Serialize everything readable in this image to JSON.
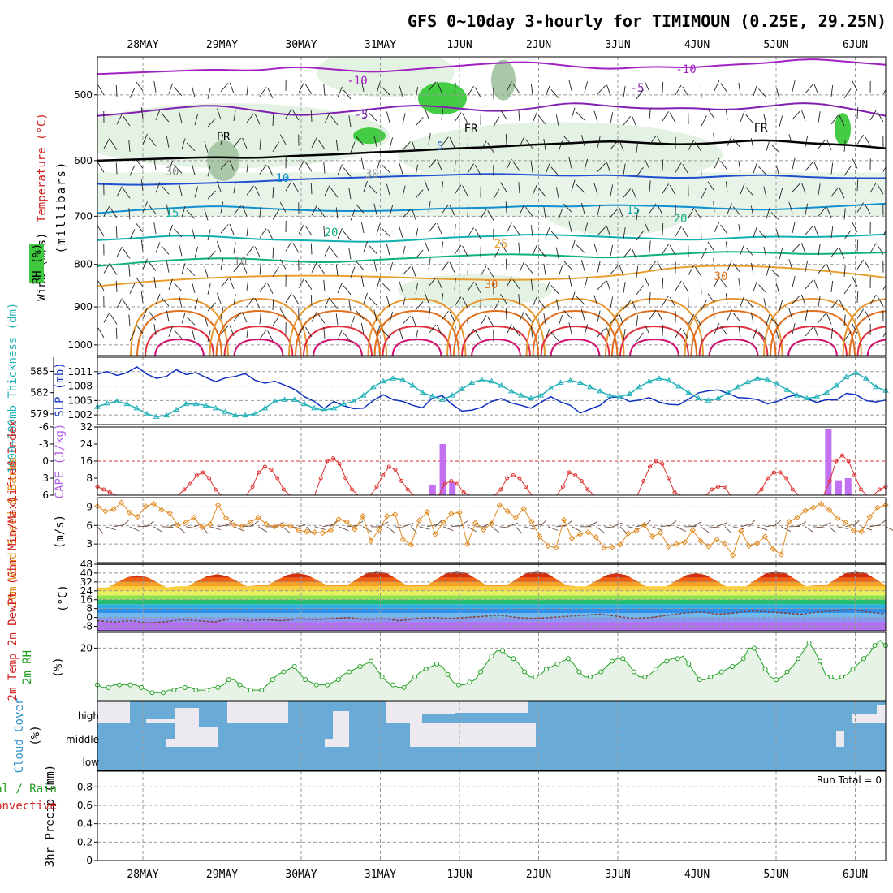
{
  "title": "GFS 0~10day 3-hourly for TIMIMOUN (0.25E, 29.25N)",
  "dates": [
    "28MAY",
    "29MAY",
    "30MAY",
    "31MAY",
    "1JUN",
    "2JUN",
    "3JUN",
    "4JUN",
    "5JUN",
    "6JUN"
  ],
  "chart_data": [
    {
      "type": "heatmap",
      "panel": "upper-air",
      "ylabel_parts": [
        "Wind (m/s)",
        "Temperature (°C)",
        "RH (%)"
      ],
      "ylabel_units": "(millibars)",
      "yticks": [
        500,
        600,
        700,
        800,
        900,
        1000
      ],
      "ylim": [
        1000,
        450
      ],
      "scale": "log-pressure",
      "contour_labels": [
        "-10",
        "-10",
        "-5",
        "-5",
        "FR",
        "FR",
        "FR",
        "5",
        "10",
        "15",
        "15",
        "20",
        "20",
        "25",
        "30",
        "30",
        "30",
        "30",
        "10"
      ],
      "isotherms": [
        {
          "label": "-10",
          "p": [
            472,
            470,
            468,
            466,
            468,
            462,
            466,
            470,
            466,
            462,
            458,
            456,
            462,
            466,
            462,
            464,
            460,
            458,
            452,
            456,
            460
          ],
          "color": "#a020c0"
        },
        {
          "label": "-5",
          "p": [
            530,
            525,
            518,
            514,
            522,
            530,
            526,
            520,
            514,
            518,
            524,
            520,
            510,
            516,
            520,
            518,
            522,
            516,
            510,
            518,
            530
          ],
          "color": "#8020b0"
        },
        {
          "label": "FR",
          "p": [
            600,
            598,
            596,
            594,
            596,
            592,
            590,
            586,
            584,
            580,
            578,
            574,
            572,
            568,
            572,
            574,
            570,
            566,
            572,
            574,
            580
          ],
          "color": "#000000"
        },
        {
          "label": "5",
          "p": [
            640,
            642,
            640,
            638,
            636,
            632,
            630,
            628,
            626,
            624,
            622,
            624,
            626,
            624,
            628,
            630,
            626,
            624,
            628,
            630,
            630
          ],
          "color": "#2050d0"
        },
        {
          "label": "10",
          "p": [
            694,
            688,
            684,
            680,
            684,
            688,
            690,
            690,
            688,
            684,
            684,
            680,
            682,
            678,
            680,
            682,
            686,
            688,
            684,
            680,
            676
          ],
          "color": "#1090d0"
        },
        {
          "label": "15",
          "p": [
            748,
            744,
            738,
            740,
            746,
            748,
            750,
            752,
            748,
            742,
            740,
            736,
            738,
            742,
            744,
            748,
            744,
            740,
            742,
            740,
            736
          ],
          "color": "#10b0b0"
        },
        {
          "label": "20",
          "p": [
            804,
            796,
            790,
            786,
            788,
            794,
            796,
            790,
            786,
            782,
            778,
            778,
            782,
            786,
            780,
            776,
            772,
            774,
            778,
            776,
            774
          ],
          "color": "#10b080"
        }
      ],
      "rh_scale_labels": [
        "30",
        "30",
        "30",
        "30",
        "10"
      ]
    },
    {
      "type": "line",
      "panel": "thickness-slp",
      "ylabel_left": "1000~500mb Thickness (dm)",
      "ylabel_right": "SLP (mb)",
      "yticks_left": [
        579,
        582,
        585
      ],
      "yticks_right": [
        1002,
        1005,
        1008,
        1011
      ],
      "ylim_slp": [
        1000,
        1014
      ],
      "ylim_thk": [
        577.5,
        587
      ],
      "series": [
        {
          "units": "mb",
          "color": "#1030c0",
          "values": [
            1010.5,
            1011.0,
            1010.2,
            1010.8,
            1012.0,
            1010.5,
            1009.6,
            1010.0,
            1011.4,
            1010.4,
            1010.8,
            1009.8,
            1008.9,
            1009.7,
            1010.0,
            1010.6,
            1009.2,
            1008.6,
            1009.0,
            1008.2,
            1007.3,
            1005.8,
            1004.8,
            1003.3,
            1004.8,
            1003.9,
            1003.3,
            1003.4,
            1005.0,
            1006.2,
            1005.2,
            1004.8,
            1004.0,
            1003.5,
            1005.5,
            1006.0,
            1004.2,
            1002.8,
            1003.0,
            1003.6,
            1004.8,
            1005.4,
            1004.5,
            1004.0,
            1003.4,
            1004.6,
            1005.8,
            1004.7,
            1004.0,
            1002.4,
            1003.2,
            1004.0,
            1005.6,
            1005.8,
            1004.8,
            1005.1,
            1005.6,
            1004.7,
            1004.2,
            1004.1,
            1005.3,
            1006.6,
            1007.0,
            1007.2,
            1006.5,
            1005.6,
            1005.5,
            1005.2,
            1004.3,
            1004.8,
            1005.7,
            1006.2,
            1005.4,
            1004.6,
            1005.2,
            1005.1,
            1006.5,
            1006.2,
            1005.0,
            1004.7,
            1005.1
          ]
        },
        {
          "units": "dm",
          "color": "#20b0b8",
          "values": [
            580.0,
            580.5,
            580.8,
            580.4,
            579.8,
            579.0,
            578.6,
            578.8,
            579.6,
            580.4,
            580.4,
            580.2,
            579.8,
            579.3,
            578.8,
            578.8,
            579.0,
            579.8,
            580.8,
            581.0,
            581.0,
            580.4,
            579.8,
            579.5,
            579.8,
            580.4,
            580.8,
            581.6,
            582.8,
            583.6,
            584.0,
            583.8,
            583.0,
            582.0,
            581.5,
            581.0,
            581.6,
            582.5,
            583.4,
            583.8,
            583.6,
            583.0,
            582.2,
            581.6,
            581.2,
            581.6,
            582.6,
            583.4,
            583.7,
            583.4,
            582.8,
            582.2,
            581.6,
            581.4,
            581.8,
            582.8,
            583.6,
            584.0,
            583.7,
            582.9,
            582.0,
            581.2,
            580.9,
            581.2,
            582.0,
            582.8,
            583.5,
            584.0,
            583.8,
            583.2,
            582.4,
            581.6,
            581.2,
            581.4,
            582.0,
            583.0,
            584.2,
            584.8,
            584.0,
            582.8,
            582.3
          ]
        }
      ]
    },
    {
      "type": "bar",
      "panel": "li-cape",
      "ylabel_left": "Lifted Index",
      "ylabel_right": "CAPE (J/kg)",
      "yticks_left": [
        6,
        3,
        0,
        -3,
        -6
      ],
      "yticks_right": [
        8,
        16,
        24,
        32
      ],
      "ylim_li": [
        6,
        -6
      ],
      "ylim_cape": [
        0,
        32
      ],
      "cape_bars": [
        {
          "day": 3.75,
          "value": 5
        },
        {
          "day": 3.88,
          "value": 24
        },
        {
          "day": 4.0,
          "value": 6
        },
        {
          "day": 8.75,
          "value": 31
        },
        {
          "day": 8.88,
          "value": 7
        },
        {
          "day": 9.0,
          "value": 8
        }
      ],
      "lifted_index": [
        4.5,
        5.0,
        5.5,
        6,
        6,
        6,
        6,
        6,
        6,
        6,
        6,
        6,
        6,
        6,
        5,
        4,
        2.5,
        2,
        3,
        5,
        6,
        6,
        6,
        6,
        6,
        4.5,
        2,
        1,
        1.5,
        3,
        5,
        6,
        6,
        6,
        6,
        6,
        3,
        0,
        -0.5,
        0.5,
        3,
        5,
        6,
        6,
        6,
        4.5,
        2.5,
        1,
        1.5,
        3.5,
        5,
        6,
        6,
        6,
        6,
        6,
        4,
        3.5,
        4,
        5.5,
        6,
        6,
        6,
        6,
        6,
        5,
        3,
        2.5,
        3,
        4.5,
        6,
        6,
        6,
        6,
        6,
        4.5,
        2,
        2.5,
        3.5,
        5,
        6,
        6,
        6,
        6,
        6,
        6,
        6,
        6,
        3.5,
        1,
        0,
        0.5,
        3,
        5.5,
        6,
        6,
        6,
        6,
        6,
        5,
        4.5,
        4.5,
        6,
        6,
        6,
        6,
        6,
        5,
        3,
        2,
        2,
        3,
        5,
        6,
        6,
        6,
        6,
        6,
        3.5,
        0,
        -1,
        0,
        2.5,
        5,
        6,
        6,
        5,
        4.5
      ]
    },
    {
      "type": "line",
      "panel": "wind10m",
      "ylabel": "10m Wind Speed & Barbs",
      "ylabel_units": "(m/s)",
      "yticks": [
        3,
        6,
        9
      ],
      "ylim": [
        0,
        10.5
      ],
      "values": [
        9.1,
        8.3,
        8.6,
        9.7,
        8.1,
        7.4,
        9.1,
        9.5,
        8.5,
        8.0,
        6.0,
        6.5,
        7.3,
        5.7,
        6.2,
        9.3,
        7.2,
        6.1,
        5.9,
        6.5,
        7.3,
        6.2,
        5.8,
        6.0,
        5.9,
        5.2,
        5.0,
        4.9,
        4.8,
        5.2,
        7.0,
        6.6,
        5.4,
        7.5,
        3.5,
        5.3,
        7.5,
        7.8,
        3.7,
        2.9,
        6.8,
        8.2,
        4.6,
        6.5,
        7.9,
        8.1,
        3.0,
        6.4,
        5.3,
        6.3,
        9.3,
        8.3,
        7.3,
        8.7,
        6.6,
        4.2,
        2.7,
        2.4,
        6.9,
        3.9,
        4.6,
        4.9,
        4.1,
        2.4,
        2.5,
        2.9,
        4.7,
        5.1,
        6.1,
        4.2,
        4.8,
        2.6,
        3.0,
        3.3,
        5.2,
        3.5,
        2.6,
        3.7,
        3.0,
        1.2,
        5.1,
        2.7,
        3.1,
        4.2,
        2.2,
        1.3,
        6.6,
        7.3,
        8.4,
        8.9,
        9.5,
        8.5,
        7.2,
        6.5,
        5.2,
        5.0,
        7.4,
        8.9,
        9.3
      ]
    },
    {
      "type": "area",
      "panel": "temperature",
      "ylabel": "2m Temp 2m DewPt (6hr Min/Max)",
      "ylabel_units": "(°C)",
      "yticks": [
        -8,
        0,
        8,
        16,
        24,
        32,
        40,
        48
      ],
      "ylim": [
        -12,
        48
      ],
      "temp_max_by_day": [
        38,
        39,
        40,
        42,
        42,
        42,
        40,
        40,
        42,
        42
      ],
      "temp_min_by_day": [
        27,
        28,
        29,
        29,
        29,
        29,
        28,
        28,
        28,
        29
      ],
      "dewpoint": [
        -3,
        -4,
        -3,
        -5,
        -4,
        -2,
        -3,
        -4,
        -1,
        -3,
        -2,
        -3,
        -1,
        -2,
        -1,
        0,
        -2,
        -1,
        -3,
        -1,
        0,
        -1,
        0,
        1,
        2,
        0,
        -1,
        0,
        1,
        2,
        3,
        1,
        -1,
        0,
        2,
        4,
        5,
        3,
        4,
        6,
        5,
        4,
        3,
        5,
        6,
        7,
        5,
        3
      ]
    },
    {
      "type": "area",
      "panel": "rh2m",
      "ylabel": "2m RH",
      "ylabel_units": "(%)",
      "yticks": [
        20
      ],
      "ylim": [
        0,
        26
      ],
      "values": [
        6,
        5,
        5,
        6,
        6,
        6,
        6,
        6,
        5,
        4,
        3,
        3,
        3,
        4,
        4,
        5,
        5,
        5,
        4,
        4,
        4,
        5,
        5,
        6,
        8,
        8,
        6,
        5,
        4,
        4,
        4,
        6,
        8,
        10,
        11,
        12,
        13,
        10,
        8,
        7,
        6,
        6,
        6,
        7,
        8,
        10,
        11,
        12,
        13,
        14,
        15,
        12,
        9,
        7,
        6,
        5,
        5,
        7,
        9,
        11,
        12,
        13,
        14,
        13,
        10,
        7,
        6,
        6,
        7,
        8,
        11,
        14,
        17,
        19,
        19,
        17,
        16,
        14,
        11,
        9,
        9,
        10,
        12,
        13,
        14,
        15,
        16,
        14,
        11,
        9,
        9,
        10,
        11,
        13,
        15,
        16,
        16,
        14,
        11,
        9,
        9,
        10,
        12,
        14,
        15,
        16,
        16,
        17,
        14,
        11,
        8,
        8,
        9,
        10,
        11,
        12,
        13,
        14,
        16,
        20,
        20,
        16,
        12,
        9,
        8,
        9,
        11,
        13,
        16,
        19,
        22,
        19,
        15,
        10,
        9,
        8,
        9,
        10,
        12,
        14,
        16,
        18,
        21,
        23,
        21
      ]
    },
    {
      "type": "heatmap",
      "panel": "cloud",
      "ylabel": "Cloud Cover",
      "ylabel_units": "(%)",
      "levels": [
        "high",
        "middle",
        "low"
      ]
    },
    {
      "type": "line",
      "panel": "precip",
      "ylabel": "3hr Precip (mm)",
      "series_labels": [
        "Total / Rain",
        "Convective"
      ],
      "yticks": [
        0,
        0.2,
        0.4,
        0.6,
        0.8
      ],
      "ylim": [
        0,
        0.97
      ],
      "values": [],
      "annotation": "Run Total = 0"
    }
  ]
}
